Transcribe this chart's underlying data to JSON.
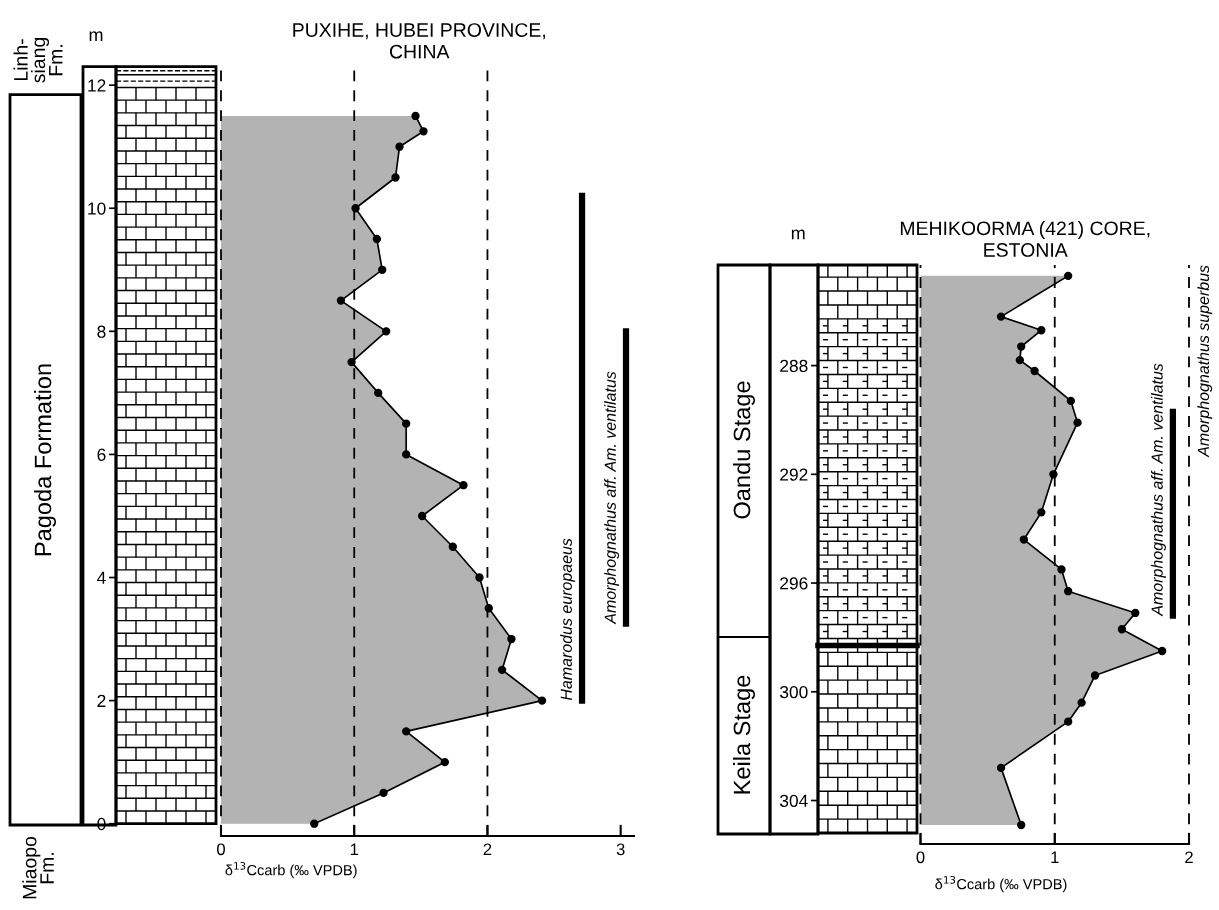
{
  "chart_data": [
    {
      "type": "area",
      "orientation": "horizontal",
      "title": "PUXIHE, HUBEI PROVINCE,\nCHINA",
      "xlabel": "δ$^{13}$Ccarb (‰ VPDB)",
      "ylabel": "m",
      "xlim": [
        0,
        3.1
      ],
      "ylim": [
        -0.2,
        12.3
      ],
      "xticks": [
        0,
        1,
        2,
        3
      ],
      "yticks": [
        0,
        2,
        4,
        6,
        8,
        10,
        12
      ],
      "marker": "circle",
      "ref_lines": [
        {
          "axis": "x",
          "value": 0,
          "line_style": "dashed",
          "color": "#000000"
        },
        {
          "axis": "x",
          "value": 1,
          "line_style": "dashed",
          "color": "#000000"
        },
        {
          "axis": "x",
          "value": 2,
          "line_style": "dashed",
          "color": "#000000"
        }
      ],
      "series": [
        {
          "color": "#b3b3b3",
          "x": [
            0,
            0.5,
            1,
            1.5,
            2,
            2.5,
            3,
            3.5,
            4,
            4.5,
            5,
            5.5,
            6,
            6.5,
            7,
            7.5,
            8,
            8.5,
            9,
            9.5,
            10,
            10.5,
            11,
            11.25,
            11.5
          ],
          "values": [
            0.7,
            1.22,
            1.68,
            1.39,
            2.41,
            2.11,
            2.18,
            2.01,
            1.94,
            1.74,
            1.51,
            1.82,
            1.39,
            1.39,
            1.18,
            0.98,
            1.24,
            0.9,
            1.21,
            1.17,
            1.01,
            1.31,
            1.34,
            1.52,
            1.46
          ]
        },
        {
          "type": "line",
          "name": "Hamarodus europaeus",
          "color": "#000000",
          "marker": "none",
          "x": [
            2.0,
            10.2
          ],
          "values": [
            2.71,
            2.71
          ]
        },
        {
          "type": "line",
          "name": "Amorphognathus aff. Am. ventilatus",
          "color": "#000000",
          "marker": "none",
          "x": [
            3.25,
            8.0
          ],
          "values": [
            3.04,
            3.04
          ]
        }
      ],
      "annotations": [
        "Linh-\nsiang\nFm.",
        "Pagoda Formation",
        "Miaopo\nFm."
      ]
    },
    {
      "type": "area",
      "orientation": "horizontal",
      "title": "MEHIKOORMA (421) CORE,\nESTONIA",
      "xlabel": "δ$^{13}$Ccarb (‰ VPDB)",
      "ylabel": "m",
      "xlim": [
        0,
        2
      ],
      "ylim": [
        305.6,
        284.3
      ],
      "xticks": [
        0,
        1,
        2
      ],
      "yticks": [
        288,
        292,
        296,
        300,
        304
      ],
      "marker": "circle",
      "ref_lines": [
        {
          "axis": "x",
          "value": 0,
          "line_style": "dashed",
          "color": "#000000"
        },
        {
          "axis": "x",
          "value": 1,
          "line_style": "dashed",
          "color": "#000000"
        },
        {
          "axis": "x",
          "value": 2,
          "line_style": "dashed",
          "color": "#000000",
          "label": "Amorphognathus superbus"
        }
      ],
      "series": [
        {
          "color": "#b3b3b3",
          "x": [
            284.7,
            286.2,
            286.7,
            287.3,
            287.8,
            288.2,
            289.3,
            290.1,
            292.0,
            293.4,
            294.4,
            295.5,
            296.3,
            297.1,
            297.7,
            298.5,
            299.4,
            300.4,
            301.1,
            302.8,
            304.9
          ],
          "values": [
            1.1,
            0.6,
            0.9,
            0.75,
            0.74,
            0.85,
            1.12,
            1.17,
            0.99,
            0.9,
            0.77,
            1.05,
            1.1,
            1.6,
            1.5,
            1.8,
            1.3,
            1.2,
            1.1,
            0.6,
            0.75
          ]
        },
        {
          "type": "line",
          "name": "Amorphognathus aff. Am. ventilatus",
          "color": "#000000",
          "marker": "none",
          "x": [
            289.7,
            297.2
          ],
          "values": [
            1.88,
            1.88
          ]
        }
      ],
      "annotations": [
        "Oandu Stage",
        "Keila Stage"
      ]
    }
  ]
}
